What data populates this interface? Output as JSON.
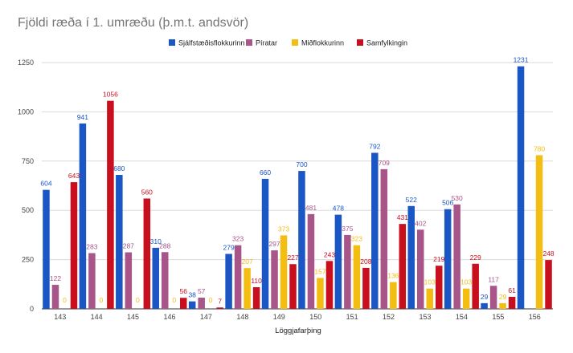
{
  "chart_data": {
    "type": "bar",
    "title": "Fjöldi ræða í 1. umræðu (þ.m.t. andsvör)",
    "xlabel": "Löggjafarþing",
    "ylabel": "",
    "ylim": [
      0,
      1250
    ],
    "yticks": [
      0,
      250,
      500,
      750,
      1000,
      1250
    ],
    "grid": true,
    "legend_position": "top",
    "categories": [
      "143",
      "144",
      "145",
      "146",
      "147",
      "148",
      "149",
      "150",
      "151",
      "152",
      "153",
      "154",
      "155",
      "156"
    ],
    "series": [
      {
        "name": "Sjálfstæðisflokkurinn",
        "color": "#1a56c4",
        "values": [
          604,
          941,
          680,
          310,
          38,
          279,
          660,
          700,
          478,
          792,
          522,
          506,
          29,
          1231
        ]
      },
      {
        "name": "Píratar",
        "color": "#a8568a",
        "values": [
          122,
          283,
          287,
          288,
          57,
          323,
          297,
          481,
          375,
          709,
          402,
          530,
          117,
          null
        ]
      },
      {
        "name": "Miðflokkurinn",
        "color": "#f4bd12",
        "values": [
          0,
          0,
          0,
          0,
          0,
          207,
          373,
          157,
          323,
          136,
          103,
          103,
          29,
          780
        ]
      },
      {
        "name": "Samfylkingin",
        "color": "#c80f1e",
        "values": [
          643,
          1056,
          560,
          56,
          7,
          110,
          227,
          243,
          208,
          431,
          219,
          229,
          61,
          248
        ]
      }
    ]
  }
}
